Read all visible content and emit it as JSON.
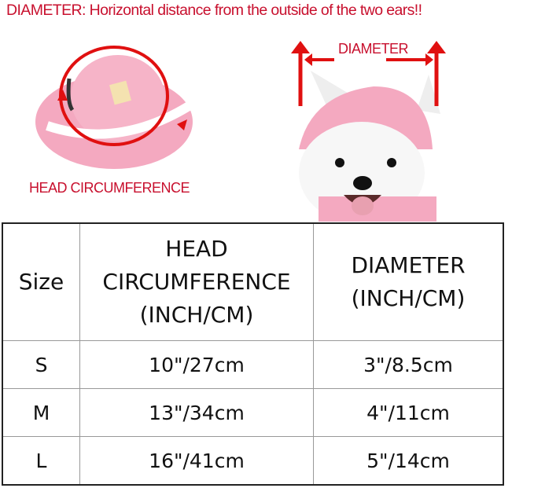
{
  "top_note": "DIAMETER: Horizontal distance from the outside of the two ears!!",
  "hat_label": "HEAD CIRCUMFERENCE",
  "dog_label": "DIAMETER",
  "colors": {
    "annotation": "#c8102e",
    "hat": "#f4a9c0"
  },
  "table": {
    "headers": [
      "Size",
      "HEAD CIRCUMFERENCE (INCH/CM)",
      "DIAMETER (INCH/CM)"
    ],
    "header_lines": {
      "head": [
        "HEAD",
        "CIRCUMFERENCE",
        "(INCH/CM)"
      ],
      "diameter": [
        "DIAMETER",
        "(INCH/CM)"
      ]
    },
    "rows": [
      {
        "size": "S",
        "head": "10\"/27cm",
        "diameter": "3\"/8.5cm"
      },
      {
        "size": "M",
        "head": "13\"/34cm",
        "diameter": "4\"/11cm"
      },
      {
        "size": "L",
        "head": "16\"/41cm",
        "diameter": "5\"/14cm"
      }
    ]
  }
}
